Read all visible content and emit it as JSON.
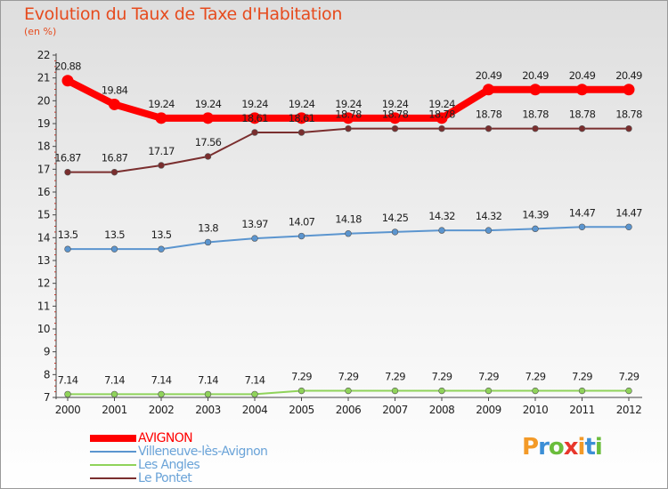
{
  "header": {
    "title": "Evolution du Taux de Taxe d'Habitation",
    "subtitle": "(en %)"
  },
  "brand": {
    "letters": [
      {
        "char": "P",
        "color": "#f39a28"
      },
      {
        "char": "r",
        "color": "#3c8fd6"
      },
      {
        "char": "o",
        "color": "#6bbd3c"
      },
      {
        "char": "x",
        "color": "#e8372c"
      },
      {
        "char": "i",
        "color": "#f39a28"
      },
      {
        "char": "t",
        "color": "#3c8fd6"
      },
      {
        "char": "i",
        "color": "#6bbd3c"
      }
    ]
  },
  "chart_data": {
    "type": "line",
    "x": [
      "2000",
      "2001",
      "2002",
      "2003",
      "2004",
      "2005",
      "2006",
      "2007",
      "2008",
      "2009",
      "2010",
      "2011",
      "2012"
    ],
    "ylim": [
      7,
      22
    ],
    "yticks": [
      "7",
      "8",
      "9",
      "10",
      "11",
      "12",
      "13",
      "14",
      "15",
      "16",
      "17",
      "18",
      "19",
      "20",
      "21",
      "22"
    ],
    "grid": false,
    "legend_position": "bottom-left",
    "series": [
      {
        "name": "AVIGNON",
        "color": "#ff0000",
        "values": [
          20.88,
          19.84,
          19.24,
          19.24,
          19.24,
          19.24,
          19.24,
          19.24,
          19.24,
          20.49,
          20.49,
          20.49,
          20.49
        ],
        "labels": [
          "20.88",
          "19.84",
          "19.24",
          "19.24",
          "19.24",
          "19.24",
          "19.24",
          "19.24",
          "19.24",
          "20.49",
          "20.49",
          "20.49",
          "20.49"
        ]
      },
      {
        "name": "Villeneuve-lès-Avignon",
        "color": "#5b95cf",
        "values": [
          13.5,
          13.5,
          13.5,
          13.8,
          13.97,
          14.07,
          14.18,
          14.25,
          14.32,
          14.32,
          14.39,
          14.47,
          14.47
        ],
        "labels": [
          "13.5",
          "13.5",
          "13.5",
          "13.8",
          "13.97",
          "14.07",
          "14.18",
          "14.25",
          "14.32",
          "14.32",
          "14.39",
          "14.47",
          "14.47"
        ]
      },
      {
        "name": "Les Angles",
        "color": "#8fd35a",
        "values": [
          7.14,
          7.14,
          7.14,
          7.14,
          7.14,
          7.29,
          7.29,
          7.29,
          7.29,
          7.29,
          7.29,
          7.29,
          7.29
        ],
        "labels": [
          "7.14",
          "7.14",
          "7.14",
          "7.14",
          "7.14",
          "7.29",
          "7.29",
          "7.29",
          "7.29",
          "7.29",
          "7.29",
          "7.29",
          "7.29"
        ]
      },
      {
        "name": "Le Pontet",
        "color": "#7a2e2e",
        "values": [
          16.87,
          16.87,
          17.17,
          17.56,
          18.61,
          18.61,
          18.78,
          18.78,
          18.78,
          18.78,
          18.78,
          18.78,
          18.78
        ],
        "labels": [
          "16.87",
          "16.87",
          "17.17",
          "17.56",
          "18.61",
          "18.61",
          "18.78",
          "18.78",
          "18.78",
          "18.78",
          "18.78",
          "18.78",
          "18.78"
        ]
      }
    ]
  }
}
